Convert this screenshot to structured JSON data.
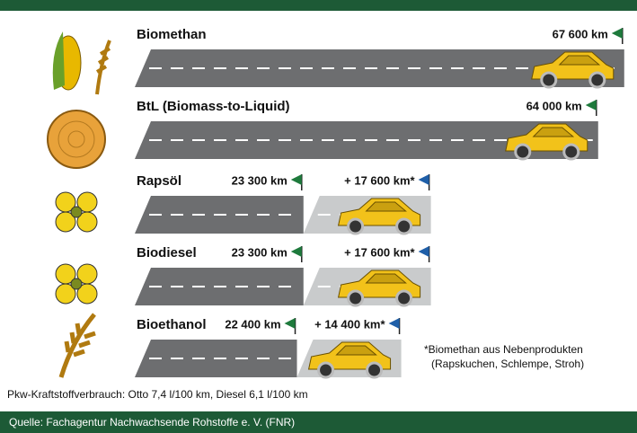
{
  "chart_data": {
    "type": "bar",
    "orientation": "horizontal",
    "stacked": true,
    "categories": [
      "Biomethan",
      "BtL (Biomass-to-Liquid)",
      "Rapsöl",
      "Biodiesel",
      "Bioethanol"
    ],
    "series": [
      {
        "color": "#6d6e70",
        "flag_color": "#1e7a3c",
        "values": [
          67600,
          64000,
          23300,
          23300,
          22400
        ],
        "value_labels": [
          "67 600 km",
          "64 000 km",
          "23 300 km",
          "23 300 km",
          "22 400 km"
        ]
      },
      {
        "color": "#c9cbcc",
        "flag_color": "#1f5fa8",
        "values": [
          null,
          null,
          17600,
          17600,
          14400
        ],
        "value_labels": [
          null,
          null,
          "+ 17 600 km*",
          "+ 17 600 km*",
          "+ 14 400 km*"
        ]
      }
    ],
    "xlim": [
      0,
      68000
    ],
    "footnote": [
      "*Biomethan aus Nebenprodukten",
      "(Rapskuchen, Schlempe, Stroh)"
    ],
    "note": "Pkw-Kraftstoffverbrauch: Otto 7,4 l/100 km, Diesel 6,1 l/100 km",
    "source": "Quelle: Fachagentur Nachwachsende Rohstoffe e. V. (FNR)"
  }
}
